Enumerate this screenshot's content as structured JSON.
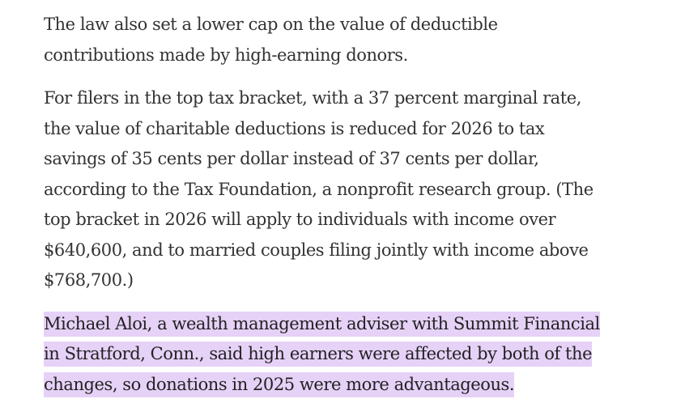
{
  "paragraphs": [
    {
      "lines": [
        "The law also set a lower cap on the value of deductible",
        "contributions made by high-earning donors."
      ],
      "highlighted": false
    },
    {
      "lines": [
        "For filers in the top tax bracket, with a 37 percent marginal rate,",
        "the value of charitable deductions is reduced for 2026 to tax",
        "savings of 35 cents per dollar instead of 37 cents per dollar,",
        "according to the Tax Foundation, a nonprofit research group. (The",
        "top bracket in 2026 will apply to individuals with income over",
        "$640,600, and to married couples filing jointly with income above",
        "$768,700.)"
      ],
      "highlighted": false
    },
    {
      "lines": [
        "Michael Aloi, a wealth management adviser with Summit Financial",
        "in Stratford, Conn., said high earners were affected by both of the",
        "changes, so donations in 2025 were more advantageous."
      ],
      "highlighted": true,
      "highlight_color": "#e6d1f7"
    }
  ]
}
